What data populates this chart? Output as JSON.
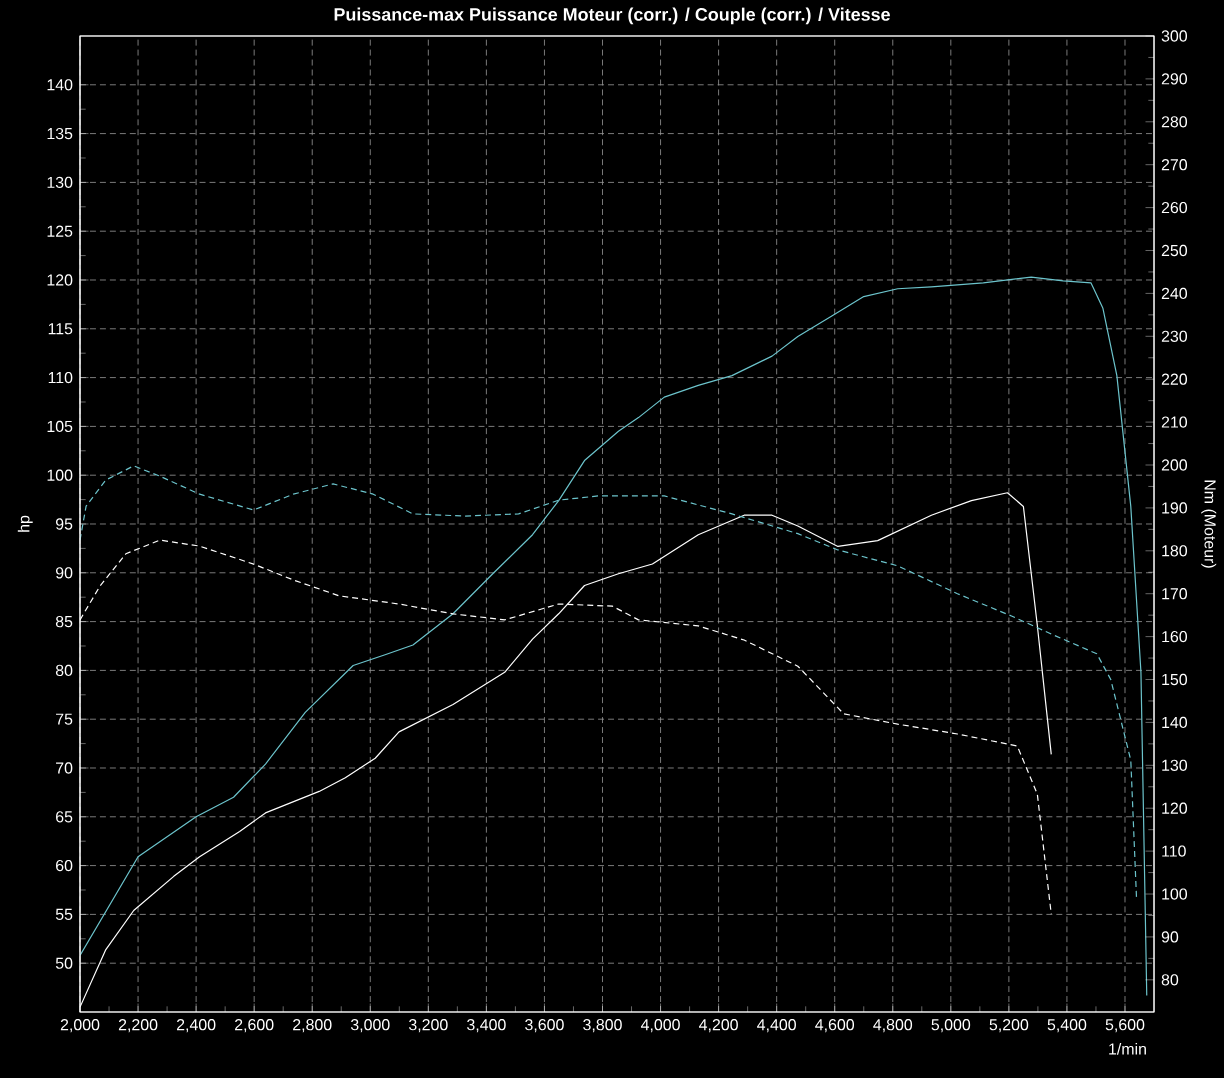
{
  "chart_data": {
    "type": "line",
    "title": "Puissance-max Puissance Moteur (corr.) / Couple (corr.) / Vitesse",
    "xlabel": "1/min",
    "ylabel": "hp",
    "y2label": "Nm (Moteur)",
    "xlim": [
      2000,
      5700
    ],
    "ylim": [
      45,
      145
    ],
    "y2lim": [
      72.5,
      300
    ],
    "xticks": [
      {
        "value": 2000,
        "label": "2,000"
      },
      {
        "value": 2200,
        "label": "2,200"
      },
      {
        "value": 2400,
        "label": "2,400"
      },
      {
        "value": 2600,
        "label": "2,600"
      },
      {
        "value": 2800,
        "label": "2,800"
      },
      {
        "value": 3000,
        "label": "3,000"
      },
      {
        "value": 3200,
        "label": "3,200"
      },
      {
        "value": 3400,
        "label": "3,400"
      },
      {
        "value": 3600,
        "label": "3,600"
      },
      {
        "value": 3800,
        "label": "3,800"
      },
      {
        "value": 4000,
        "label": "4,000"
      },
      {
        "value": 4200,
        "label": "4,200"
      },
      {
        "value": 4400,
        "label": "4,400"
      },
      {
        "value": 4600,
        "label": "4,600"
      },
      {
        "value": 4800,
        "label": "4,800"
      },
      {
        "value": 5000,
        "label": "5,000"
      },
      {
        "value": 5200,
        "label": "5,200"
      },
      {
        "value": 5400,
        "label": "5,400"
      },
      {
        "value": 5600,
        "label": "5,600"
      }
    ],
    "yticks": [
      50,
      55,
      60,
      65,
      70,
      75,
      80,
      85,
      90,
      95,
      100,
      105,
      110,
      115,
      120,
      125,
      130,
      135,
      140
    ],
    "y2ticks": [
      80,
      90,
      100,
      110,
      120,
      130,
      140,
      150,
      160,
      170,
      180,
      190,
      200,
      210,
      220,
      230,
      240,
      250,
      260,
      270,
      280,
      290,
      300
    ],
    "grid": true,
    "marker": "none",
    "series": [
      {
        "color": "#6cc4cc",
        "line_style": "solid",
        "x": [
          2000,
          2200,
          2400,
          2529,
          2639,
          2776,
          2941,
          3051,
          3147,
          3285,
          3422,
          3559,
          3649,
          3738,
          3855,
          3924,
          4013,
          4130,
          4246,
          4384,
          4473,
          4590,
          4700,
          4817,
          4933,
          5112,
          5277,
          5387,
          5483,
          5524,
          5572,
          5620,
          5655,
          5675
        ],
        "values": [
          50.8,
          60.9,
          65,
          67,
          70.4,
          75.7,
          80.5,
          81.6,
          82.6,
          85.8,
          89.9,
          93.9,
          97.4,
          101.5,
          104.5,
          105.9,
          108,
          109.2,
          110.2,
          112.2,
          114.2,
          116.3,
          118.3,
          119.1,
          119.3,
          119.7,
          120.3,
          119.9,
          119.7,
          117.1,
          110.2,
          96.8,
          79.8,
          46.7
        ]
      },
      {
        "color": "#ffffff",
        "line_style": "solid",
        "x": [
          2000,
          2089,
          2185,
          2323,
          2412,
          2550,
          2639,
          2824,
          2914,
          3017,
          3099,
          3285,
          3463,
          3559,
          3649,
          3738,
          3855,
          3972,
          4130,
          4288,
          4384,
          4473,
          4611,
          4748,
          4933,
          5071,
          5195,
          5250,
          5298,
          5346
        ],
        "values": [
          45.5,
          51.4,
          55.4,
          58.9,
          60.9,
          63.5,
          65.4,
          67.6,
          69,
          71,
          73.7,
          76.5,
          79.8,
          83.2,
          85.8,
          88.7,
          89.9,
          90.9,
          93.9,
          95.9,
          95.9,
          94.8,
          92.7,
          93.3,
          95.9,
          97.4,
          98.2,
          96.8,
          84.6,
          71.4
        ]
      },
      {
        "color": "#6cc4cc",
        "line_style": "dashed",
        "axis": "y2",
        "x": [
          2000,
          2021,
          2089,
          2185,
          2275,
          2412,
          2598,
          2735,
          2872,
          3010,
          3147,
          3326,
          3511,
          3649,
          3786,
          4013,
          4246,
          4473,
          4611,
          4817,
          5023,
          5209,
          5346,
          5503,
          5551,
          5620,
          5640
        ],
        "values": [
          182.5,
          190.4,
          196.5,
          199.8,
          197.4,
          193.2,
          189.5,
          193.2,
          195.6,
          193.2,
          188.6,
          188.1,
          188.6,
          191.8,
          192.8,
          192.8,
          188.6,
          184,
          180.2,
          176.5,
          170,
          164.8,
          160.6,
          156,
          150,
          131.2,
          98.6
        ]
      },
      {
        "color": "#ffffff",
        "line_style": "dashed",
        "axis": "y2",
        "x": [
          2000,
          2069,
          2158,
          2275,
          2412,
          2598,
          2735,
          2893,
          3099,
          3285,
          3463,
          3649,
          3834,
          3924,
          4130,
          4288,
          4473,
          4631,
          4817,
          5023,
          5229,
          5298,
          5346
        ],
        "values": [
          163.9,
          171.8,
          179.3,
          182.5,
          181.1,
          176.9,
          173.2,
          169.5,
          167.6,
          165.3,
          163.9,
          167.6,
          167.1,
          163.9,
          162.5,
          159.2,
          153.1,
          142,
          139.6,
          137.3,
          134.5,
          123.3,
          95.3
        ]
      }
    ]
  }
}
